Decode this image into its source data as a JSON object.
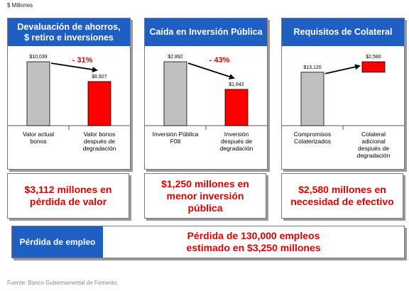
{
  "units": "$ Millones",
  "source": "Fuente: Banco Gubernamental de Fomento.",
  "colors": {
    "header": "#1f5fc4",
    "gray_bar": "#c0c0c0",
    "red_bar": "#ff0000",
    "accent_text": "#e00000"
  },
  "chart_data": [
    {
      "type": "bar",
      "title": "Devaluación de ahorros,\n$ retiro e inversiones",
      "categories": [
        "Valor actual\nbonos",
        "Valor bonos\ndespués de\ndegradación"
      ],
      "values": [
        10039,
        6927
      ],
      "value_labels": [
        "$10,039",
        "$6,927"
      ],
      "bar_colors": [
        "#c0c0c0",
        "#ff0000"
      ],
      "annotation": "- 31%",
      "summary": "$3,112 millones en\npérdida de valor"
    },
    {
      "type": "bar",
      "title": "Caída en Inversión Pública",
      "categories": [
        "Inversión Pública\nF08",
        "Inversión\ndespués de\ndegradación"
      ],
      "values": [
        2892,
        1642
      ],
      "value_labels": [
        "$2,892",
        "$1,642"
      ],
      "bar_colors": [
        "#c0c0c0",
        "#ff0000"
      ],
      "annotation": "- 43%",
      "summary": "$1,250 millones en\nmenor inversión\npública"
    },
    {
      "type": "bar",
      "title": "Requisitos de Colateral",
      "categories": [
        "Compromisos\nColaterizados",
        "Colateral\nadicional\ndespués de\ndegradación"
      ],
      "values": [
        13120,
        2580
      ],
      "value_labels": [
        "$13,120",
        "$2,580"
      ],
      "bar_colors": [
        "#c0c0c0",
        "#ff0000"
      ],
      "waterfall": true,
      "annotation": "",
      "summary": "$2,580 millones en\nnecesidad de efectivo"
    }
  ],
  "job": {
    "label": "Pérdida de empleo",
    "text": "Pérdida de 130,000 empleos\nestimado en $3,250 millones"
  }
}
